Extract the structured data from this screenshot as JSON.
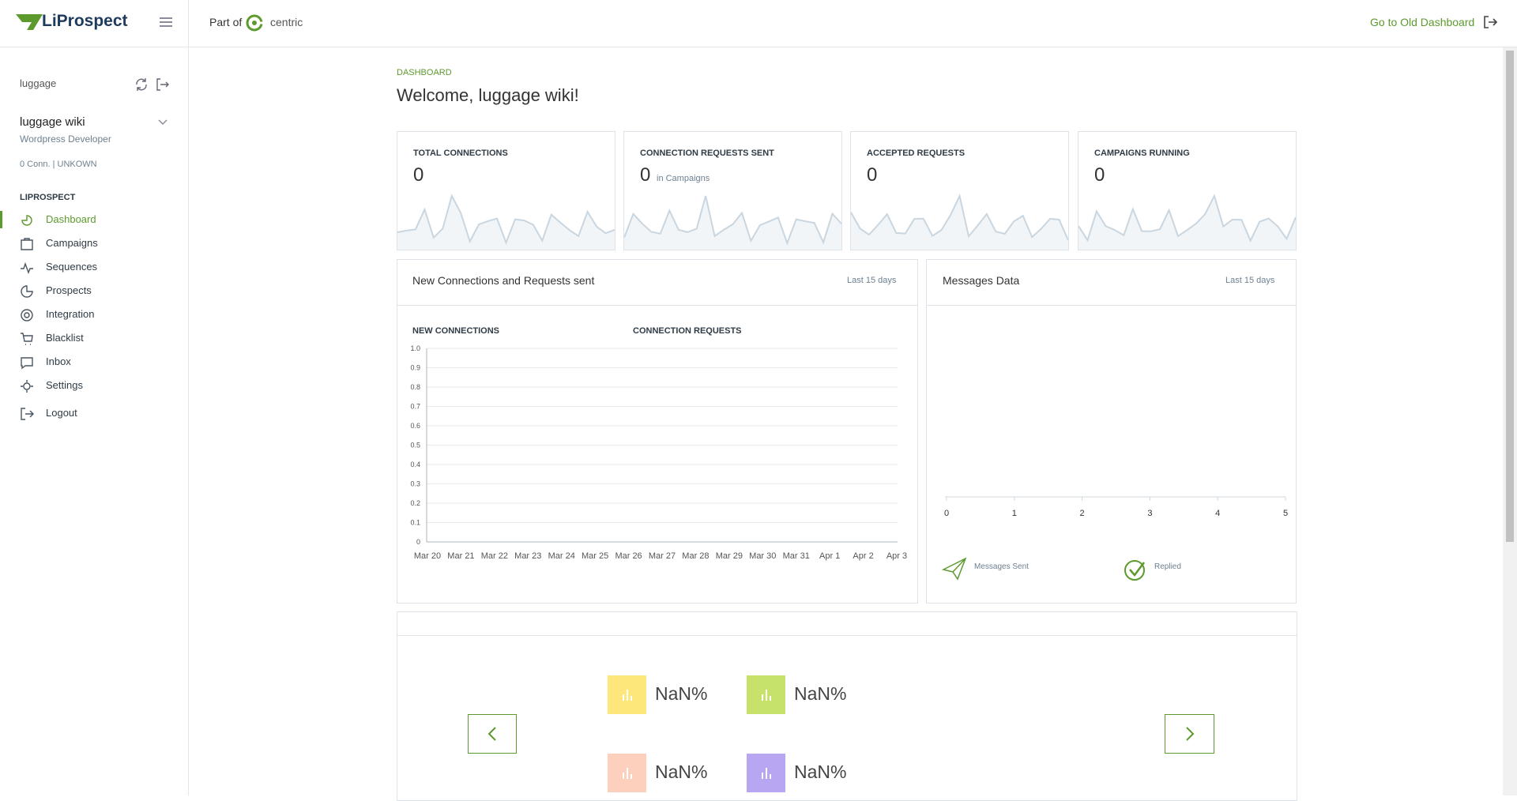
{
  "header": {
    "logo": "LiProspect",
    "part_of": "Part of",
    "partner": "centric",
    "old_dashboard": "Go to Old Dashboard"
  },
  "sidebar": {
    "avatar_alt": "luggage",
    "user_name": "luggage wiki",
    "user_role": "Wordpress Developer",
    "user_stats": "0 Conn. | UNKOWN",
    "section": "LIPROSPECT",
    "menu": [
      "Dashboard",
      "Campaigns",
      "Sequences",
      "Prospects",
      "Integration",
      "Blacklist",
      "Inbox",
      "Settings",
      "Logout"
    ]
  },
  "main": {
    "breadcrumb": "DASHBOARD",
    "welcome": "Welcome, luggage wiki!",
    "stats": [
      {
        "title": "TOTAL CONNECTIONS",
        "value": "0"
      },
      {
        "title": "CONNECTION REQUESTS SENT",
        "value": "0",
        "note": "in Campaigns"
      },
      {
        "title": "ACCEPTED REQUESTS",
        "value": "0"
      },
      {
        "title": "CAMPAIGNS RUNNING",
        "value": "0"
      }
    ],
    "connections_chart": {
      "title": "New Connections and Requests sent",
      "period": "Last 15 days",
      "legend": [
        "NEW CONNECTIONS",
        "CONNECTION REQUESTS"
      ],
      "yticks": [
        "0",
        "0.1",
        "0.2",
        "0.3",
        "0.4",
        "0.5",
        "0.6",
        "0.7",
        "0.8",
        "0.9",
        "1.0"
      ],
      "xlabels": [
        "Mar 20",
        "Mar 21",
        "Mar 22",
        "Mar 23",
        "Mar 24",
        "Mar 25",
        "Mar 26",
        "Mar 27",
        "Mar 28",
        "Mar 29",
        "Mar 30",
        "Mar 31",
        "Apr 1",
        "Apr 2",
        "Apr 3"
      ]
    },
    "messages_chart": {
      "title": "Messages Data",
      "period": "Last 15 days",
      "xticks": [
        "0",
        "1",
        "2",
        "3",
        "4",
        "5"
      ],
      "legend": [
        "Messages Sent",
        "Replied"
      ]
    },
    "rates": [
      "NaN%",
      "NaN%",
      "NaN%",
      "NaN%"
    ]
  }
}
